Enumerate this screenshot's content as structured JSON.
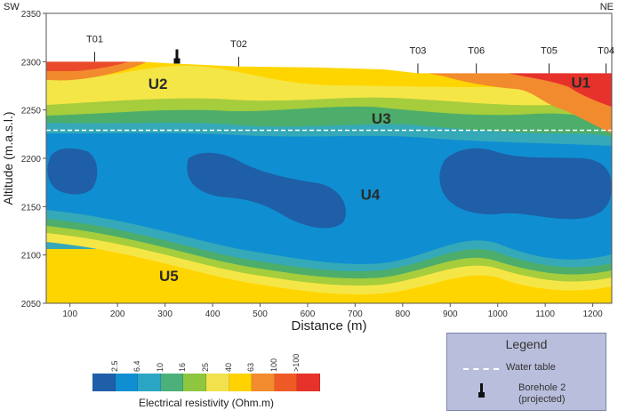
{
  "chart_data": {
    "type": "heatmap",
    "title": "",
    "xlabel": "Distance (m)",
    "ylabel": "Altitude (m.a.s.l.)",
    "xlim": [
      50,
      1240
    ],
    "ylim": [
      2050,
      2350
    ],
    "x_ticks": [
      100,
      200,
      300,
      400,
      500,
      600,
      700,
      800,
      900,
      1000,
      1100,
      1200
    ],
    "y_ticks": [
      2050,
      2100,
      2150,
      2200,
      2250,
      2300,
      2350
    ],
    "corner_labels": {
      "left": "SW",
      "right": "NE"
    },
    "stations": [
      {
        "name": "T01",
        "x": 152,
        "y": 2300
      },
      {
        "name": "T02",
        "x": 455,
        "y": 2295
      },
      {
        "name": "T03",
        "x": 832,
        "y": 2288
      },
      {
        "name": "T06",
        "x": 955,
        "y": 2288
      },
      {
        "name": "T05",
        "x": 1108,
        "y": 2288
      },
      {
        "name": "T04",
        "x": 1228,
        "y": 2288
      }
    ],
    "units": [
      {
        "name": "U1",
        "x": 1175,
        "y": 2273
      },
      {
        "name": "U2",
        "x": 285,
        "y": 2272
      },
      {
        "name": "U3",
        "x": 755,
        "y": 2236
      },
      {
        "name": "U4",
        "x": 732,
        "y": 2157
      },
      {
        "name": "U5",
        "x": 308,
        "y": 2073
      }
    ],
    "water_table_altitude": 2229,
    "borehole_x": 325,
    "topography": [
      [
        50,
        2300
      ],
      [
        250,
        2300
      ],
      [
        320,
        2298
      ],
      [
        455,
        2295
      ],
      [
        620,
        2294
      ],
      [
        760,
        2292
      ],
      [
        832,
        2288
      ],
      [
        1240,
        2288
      ]
    ],
    "resistivity_scale": {
      "label": "Electrical resistivity (Ohm.m)",
      "ticks": [
        "2.5",
        "6.4",
        "10",
        "16",
        "25",
        "40",
        "63",
        "100",
        ">100"
      ],
      "colors": [
        "#1f5fa8",
        "#0f8fd1",
        "#2aa6c4",
        "#4bb07a",
        "#8ec63f",
        "#f2e14c",
        "#ffd200",
        "#f28a2e",
        "#ee5a26",
        "#e6322b"
      ]
    }
  },
  "legend": {
    "title": "Legend",
    "water_table": "Water table",
    "borehole_line1": "Borehole 2",
    "borehole_line2": "(projected)"
  },
  "colors": {
    "frame": "#555555",
    "water_table": "#ffffff",
    "legend_bg": "#b9bedc"
  }
}
